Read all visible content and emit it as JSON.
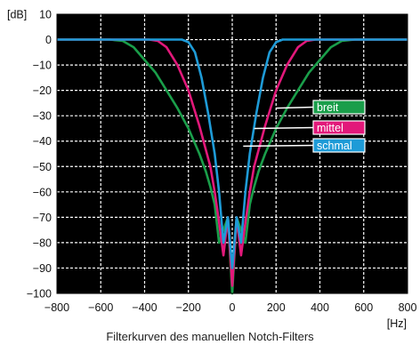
{
  "caption": "Filterkurven des manuellen Notch-Filters",
  "chart_data": {
    "type": "line",
    "title": "",
    "xlabel": "[Hz]",
    "ylabel": "[dB]",
    "xlim": [
      -800,
      800
    ],
    "ylim": [
      -100,
      10
    ],
    "x_ticks": [
      -800,
      -600,
      -400,
      -200,
      0,
      200,
      400,
      600,
      800
    ],
    "x_tick_labels": [
      "−800",
      "−600",
      "−400",
      "−200",
      "0",
      "200",
      "400",
      "600",
      "800"
    ],
    "y_ticks": [
      10,
      0,
      -10,
      -20,
      -30,
      -40,
      -50,
      -60,
      -70,
      -80,
      -90,
      -100
    ],
    "y_tick_labels": [
      "10",
      "0",
      "−10",
      "−20",
      "−30",
      "−40",
      "−50",
      "−60",
      "−70",
      "−80",
      "−90",
      "−100"
    ],
    "grid": true,
    "background": "#000000",
    "series": [
      {
        "name": "breit",
        "color": "#1a9e4a",
        "x": [
          -800,
          -560,
          -500,
          -450,
          -400,
          -350,
          -300,
          -250,
          -200,
          -150,
          -120,
          -100,
          -80,
          -60,
          -40,
          -20,
          0,
          20,
          40,
          60,
          80,
          100,
          120,
          150,
          200,
          250,
          300,
          350,
          400,
          450,
          500,
          560,
          800
        ],
        "y": [
          0,
          0,
          -0.5,
          -3,
          -8,
          -13,
          -20,
          -27,
          -35,
          -45,
          -52,
          -58,
          -65,
          -80,
          -75,
          -70,
          -100,
          -70,
          -75,
          -80,
          -65,
          -58,
          -52,
          -45,
          -35,
          -27,
          -20,
          -13,
          -8,
          -3,
          -0.5,
          0,
          0
        ]
      },
      {
        "name": "mittel",
        "color": "#e2187a",
        "x": [
          -800,
          -380,
          -340,
          -300,
          -250,
          -200,
          -150,
          -100,
          -80,
          -60,
          -40,
          -20,
          0,
          20,
          40,
          60,
          80,
          100,
          150,
          200,
          250,
          300,
          340,
          380,
          800
        ],
        "y": [
          0,
          0,
          -0.5,
          -3,
          -10,
          -20,
          -34,
          -50,
          -60,
          -72,
          -85,
          -70,
          -97,
          -70,
          -85,
          -72,
          -60,
          -50,
          -34,
          -20,
          -10,
          -3,
          -0.5,
          0,
          0
        ]
      },
      {
        "name": "schmal",
        "color": "#1e9bd7",
        "x": [
          -800,
          -230,
          -200,
          -170,
          -140,
          -110,
          -80,
          -60,
          -40,
          -20,
          0,
          20,
          40,
          60,
          80,
          110,
          140,
          170,
          200,
          230,
          800
        ],
        "y": [
          0,
          0,
          -1,
          -5,
          -15,
          -29,
          -45,
          -60,
          -80,
          -70,
          -90,
          -70,
          -80,
          -60,
          -45,
          -29,
          -15,
          -5,
          -1,
          0,
          0
        ]
      }
    ],
    "legend": [
      {
        "label": "breit",
        "color": "#1a9e4a",
        "points_to": [
          200,
          -27
        ]
      },
      {
        "label": "mittel",
        "color": "#e2187a",
        "points_to": [
          100,
          -35
        ]
      },
      {
        "label": "schmal",
        "color": "#1e9bd7",
        "points_to": [
          50,
          -42
        ]
      }
    ]
  }
}
